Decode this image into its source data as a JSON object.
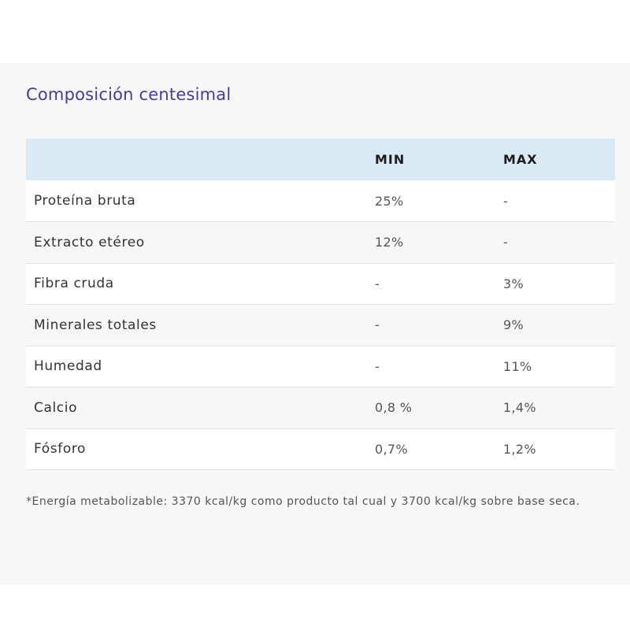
{
  "title": "Composición centesimal",
  "table": {
    "headers": {
      "name": "",
      "min": "MIN",
      "max": "MAX"
    },
    "rows": [
      {
        "name": "Proteína bruta",
        "min": "25%",
        "max": "-"
      },
      {
        "name": "Extracto etéreo",
        "min": "12%",
        "max": "-"
      },
      {
        "name": "Fibra cruda",
        "min": "-",
        "max": "3%"
      },
      {
        "name": "Minerales totales",
        "min": "-",
        "max": "9%"
      },
      {
        "name": "Humedad",
        "min": "-",
        "max": "11%"
      },
      {
        "name": "Calcio",
        "min": "0,8 %",
        "max": "1,4%"
      },
      {
        "name": "Fósforo",
        "min": "0,7%",
        "max": "1,2%"
      }
    ]
  },
  "footnote": "*Energía metabolizable: 3370 kcal/kg como producto tal cual y 3700 kcal/kg sobre base seca.",
  "colors": {
    "title": "#4b3a99",
    "header_background": "#daeaf4",
    "panel_background": "#f7f7f7"
  }
}
